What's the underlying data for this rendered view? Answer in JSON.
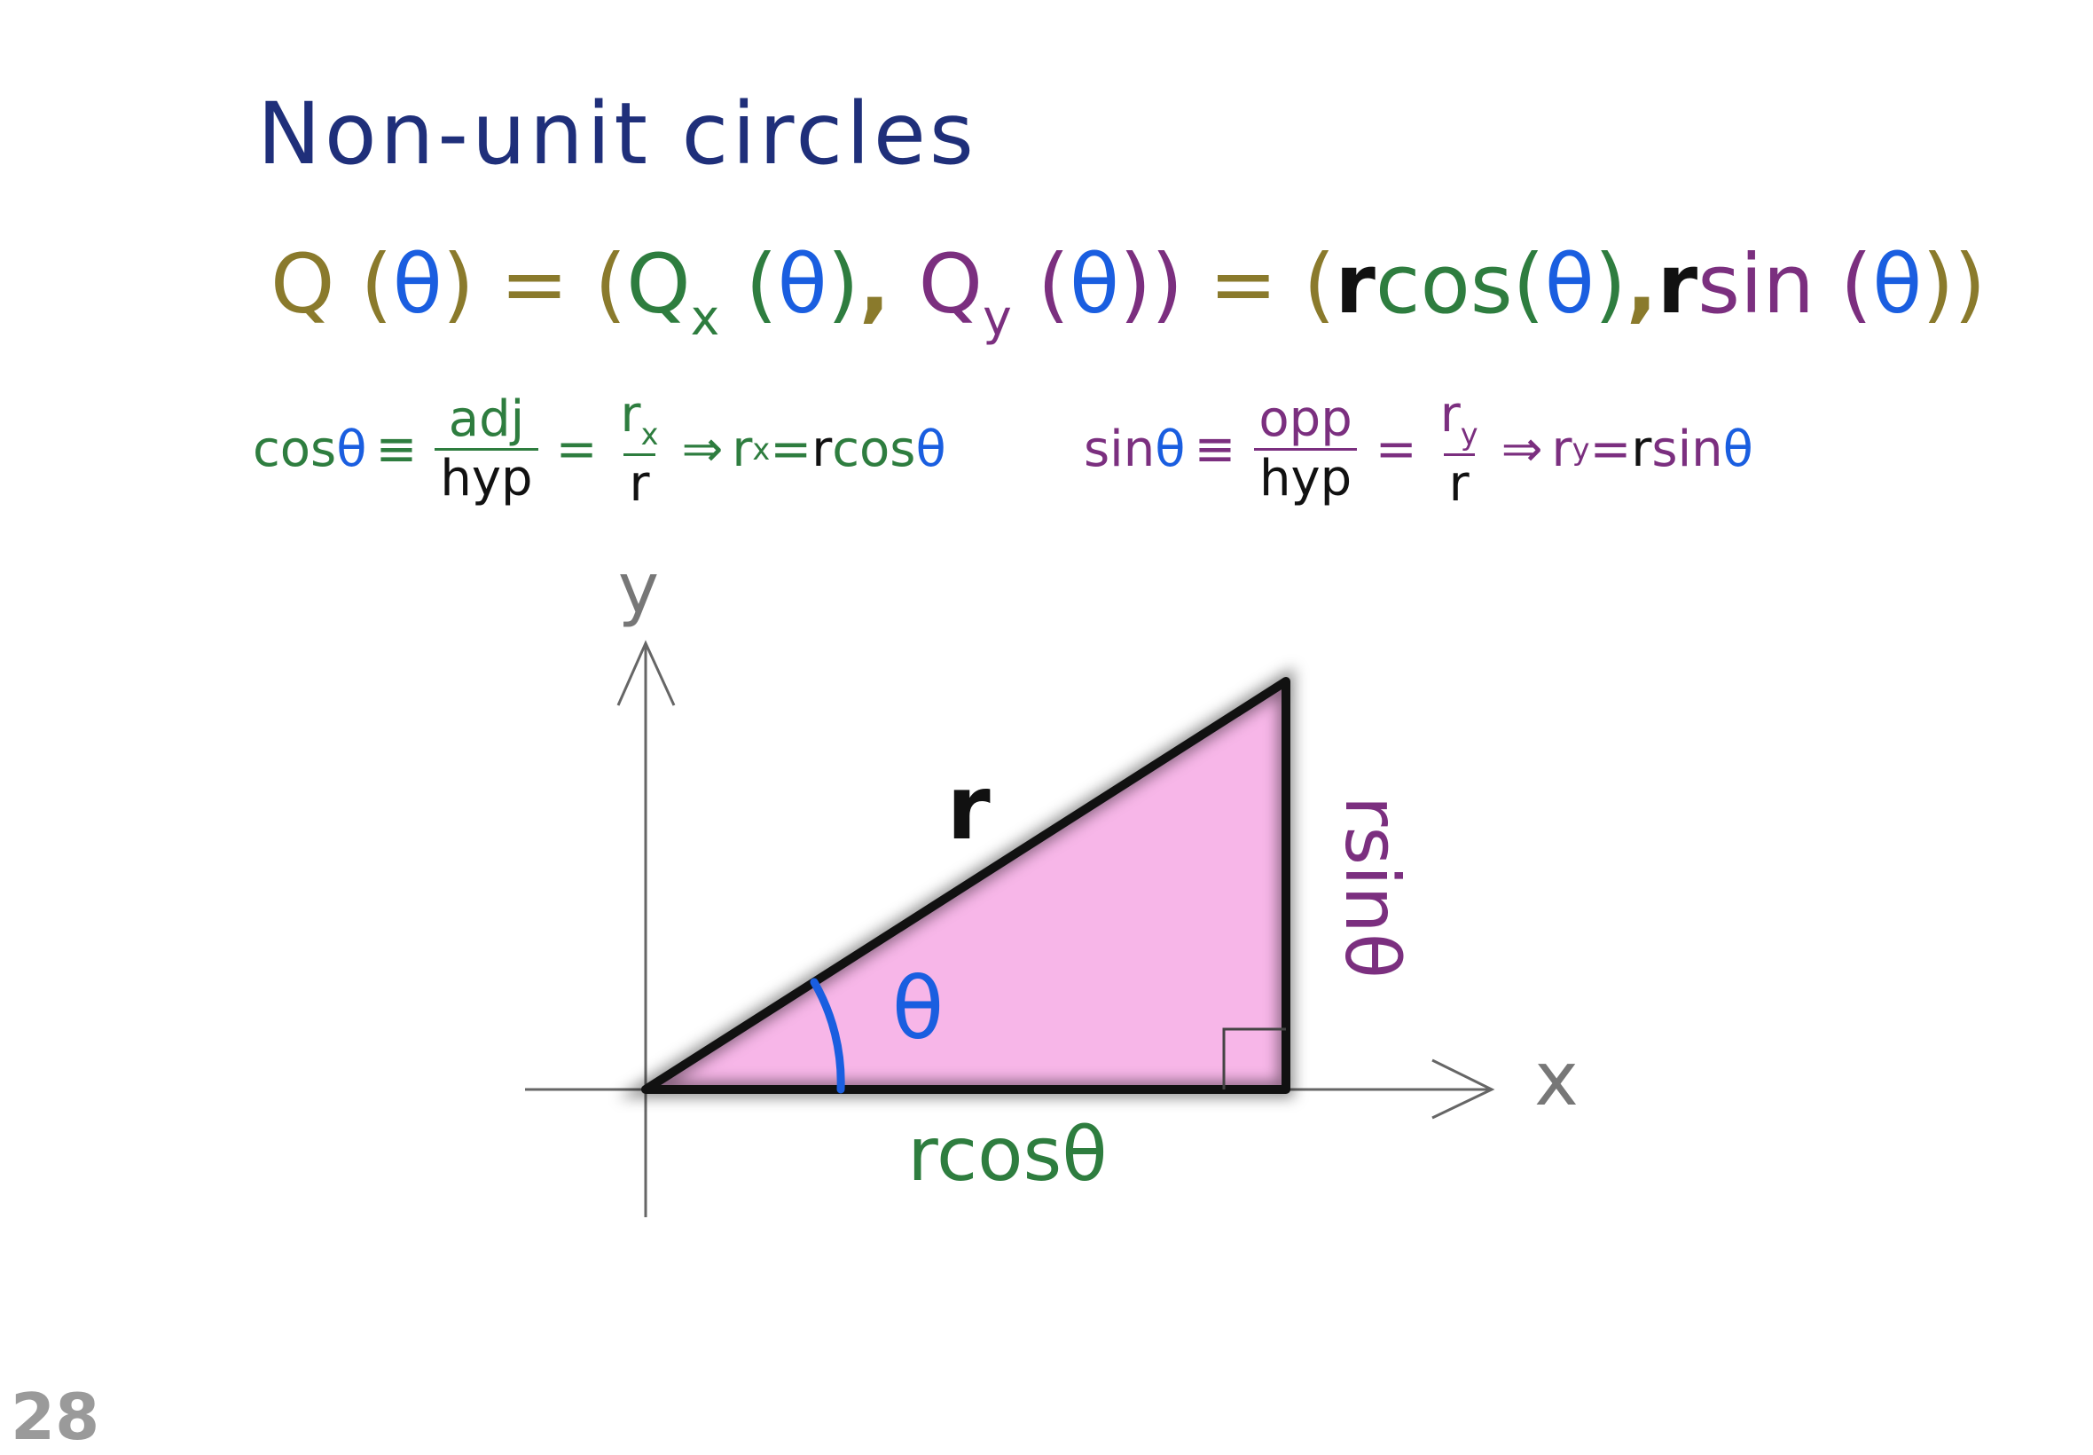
{
  "title": "Non-unit circles",
  "main_equation": {
    "Q": "Q",
    "open1": " (",
    "theta1": "θ",
    "close1": ")",
    "eq1": " = ",
    "open2": "(",
    "Qx": "Q",
    "x_sub": "x",
    "open3": " (",
    "theta2": "θ",
    "close3": ")",
    "comma1": ", ",
    "Qy": "Q",
    "y_sub": "y",
    "open4": " (",
    "theta3": "θ",
    "close4": "))",
    "eq2": " = ",
    "open5": "(",
    "r1": "r",
    "cos": "cos",
    "open6": "(",
    "theta4": "θ",
    "close6": ")",
    "comma2": ",",
    "r2": "r",
    "sin": "sin",
    "open7": " (",
    "theta5": "θ",
    "close7": "))"
  },
  "cos_definition": {
    "lhs": "cos",
    "theta": "θ",
    "equiv": "≡",
    "num1": "adj",
    "den1": "hyp",
    "eq": "=",
    "num2_r": "r",
    "num2_sub": "x",
    "den2": "r",
    "implies": "⇒",
    "res_r": "r",
    "res_sub": "x",
    "res_eq": " = ",
    "res_rhs_r": "r",
    "res_rhs": "cos",
    "res_theta": "θ"
  },
  "sin_definition": {
    "lhs": "sin",
    "theta": "θ",
    "equiv": "≡",
    "num1": "opp",
    "den1": "hyp",
    "eq": "=",
    "num2_r": "r",
    "num2_sub": "y",
    "den2": "r",
    "implies": "⇒",
    "res_r": "r",
    "res_sub": "y",
    "res_eq": " = ",
    "res_rhs_r": "r",
    "res_rhs": "sin",
    "res_theta": "θ"
  },
  "diagram": {
    "y_axis_label": "y",
    "x_axis_label": "x",
    "hypotenuse_label": "r",
    "angle_label": "θ",
    "adjacent_label": "rcosθ",
    "opposite_label": "rsinθ",
    "triangle_fill": "#f7b6e8",
    "angle_color": "#1a5ee0",
    "adjacent_color": "#2e7d3f",
    "opposite_color": "#7b2f7f"
  },
  "page_number": "28"
}
